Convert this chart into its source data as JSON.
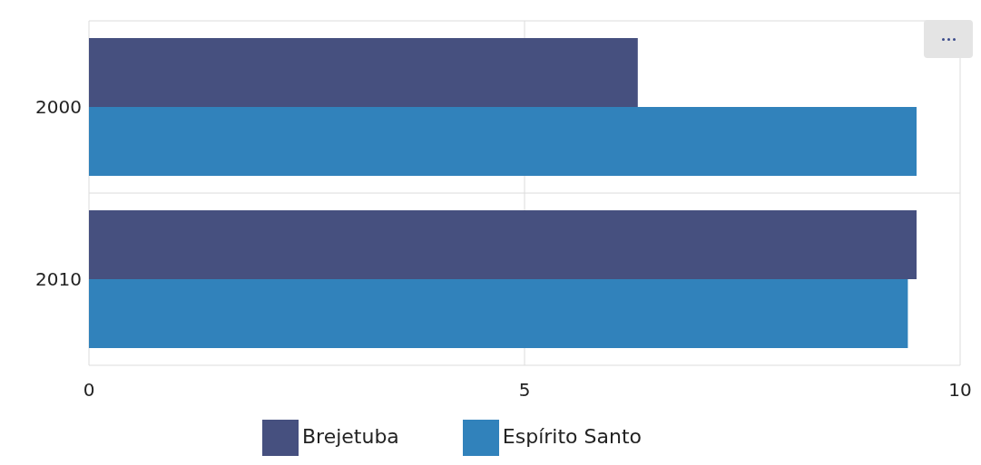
{
  "chart_data": {
    "type": "bar",
    "orientation": "horizontal",
    "categories": [
      "2000",
      "2010"
    ],
    "series": [
      {
        "name": "Brejetuba",
        "color": "#46507f",
        "values": [
          6.3,
          9.5
        ]
      },
      {
        "name": "Espírito Santo",
        "color": "#3182bb",
        "values": [
          9.5,
          9.4
        ]
      }
    ],
    "xlim": [
      0,
      10
    ],
    "xticks": [
      0,
      5,
      10
    ],
    "grid": true,
    "legend": "bottom"
  }
}
